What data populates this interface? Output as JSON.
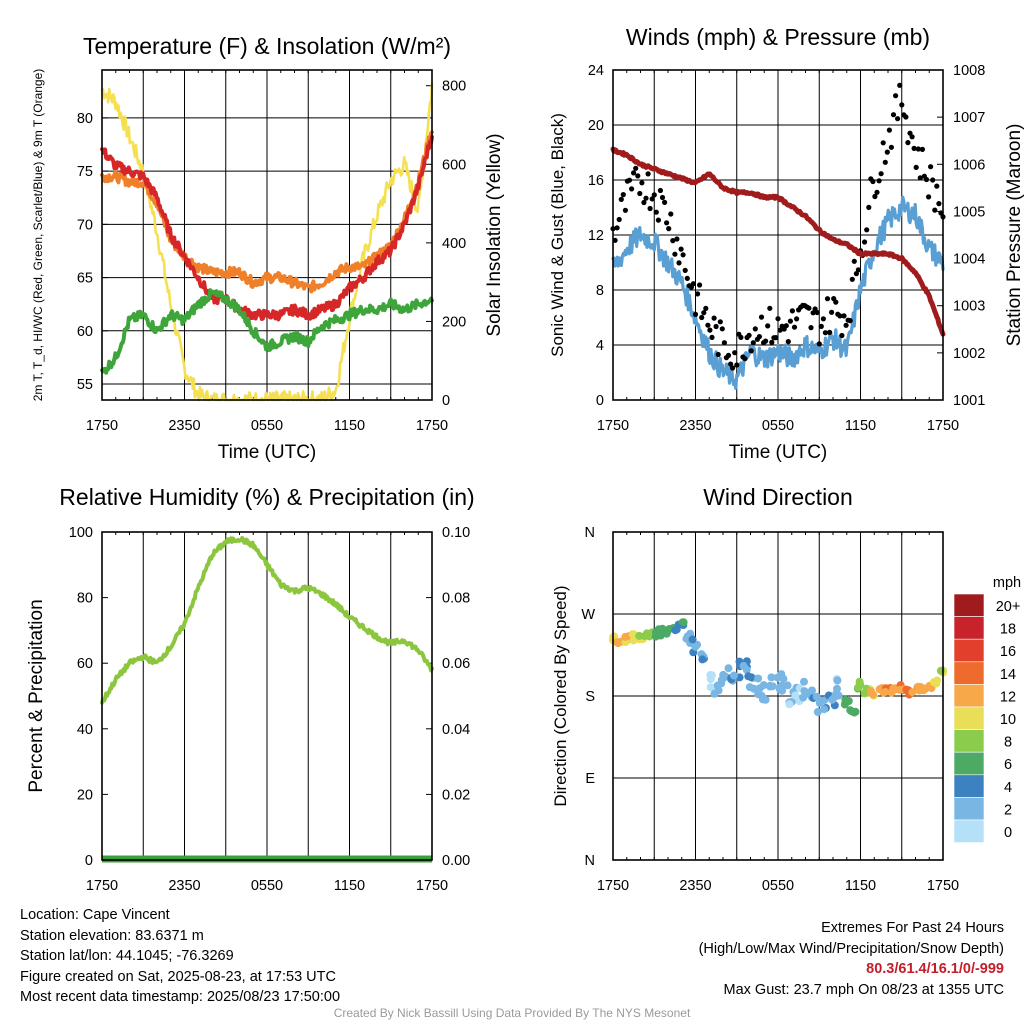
{
  "chart_data": [
    {
      "type": "line",
      "title": "Temperature (F) & Insolation (W/m²)",
      "xlabel": "Time (UTC)",
      "ylabel": "2m T, T_d, HI/WC (Red, Green, Scarlet/Blue) & 9m T (Orange)",
      "ylabel2": "Solar Insolation (Yellow)",
      "x_ticks": [
        "1750",
        "2350",
        "0550",
        "1150",
        "1750"
      ],
      "ylim": [
        53.5,
        84.5
      ],
      "y_ticks": [
        55,
        60,
        65,
        70,
        75,
        80
      ],
      "ylim2": [
        0,
        840
      ],
      "y2_ticks": [
        0,
        200,
        400,
        600,
        800
      ],
      "x_hours": [
        0,
        1,
        2,
        3,
        4,
        5,
        6,
        7,
        8,
        9,
        10,
        11,
        12,
        13,
        14,
        15,
        16,
        17,
        18,
        19,
        20,
        21,
        22,
        23,
        24
      ],
      "series": [
        {
          "name": "2m T",
          "color": "#d62728",
          "axis": "left",
          "values": [
            77,
            75.5,
            75,
            74.5,
            72.5,
            69,
            67,
            65,
            63,
            63,
            62,
            61.5,
            61.5,
            61.5,
            62,
            61.5,
            62,
            62.5,
            64,
            65,
            66.5,
            67.5,
            70,
            73.5,
            78.5
          ]
        },
        {
          "name": "9m T",
          "color": "#f07f2a",
          "axis": "left",
          "values": [
            74.5,
            74.5,
            74,
            74,
            72,
            68.5,
            67,
            66,
            65.5,
            65.5,
            65.5,
            64.5,
            65,
            65,
            64.5,
            64,
            64.5,
            65.5,
            66,
            66,
            67,
            68,
            70.5,
            74,
            79
          ]
        },
        {
          "name": "T_d",
          "color": "#3da53a",
          "axis": "left",
          "values": [
            56,
            57.5,
            61,
            61.5,
            60,
            61.5,
            61,
            62.5,
            63.5,
            63,
            62,
            60,
            58.5,
            59,
            59.5,
            59,
            60.5,
            61,
            61.5,
            62,
            62,
            62.5,
            62,
            62.5,
            63
          ]
        },
        {
          "name": "Solar Insolation",
          "color": "#f5e052",
          "axis": "right",
          "values": [
            790,
            760,
            670,
            580,
            430,
            240,
            80,
            12,
            0,
            0,
            0,
            0,
            0,
            0,
            0,
            0,
            2,
            25,
            210,
            360,
            470,
            560,
            600,
            480,
            800
          ]
        }
      ]
    },
    {
      "type": "line",
      "title": "Winds (mph) & Pressure (mb)",
      "xlabel": "Time (UTC)",
      "ylabel": "Sonic Wind & Gust (Blue, Black)",
      "ylabel2": "Station Pressure (Maroon)",
      "x_ticks": [
        "1750",
        "2350",
        "0550",
        "1150",
        "1750"
      ],
      "ylim": [
        0,
        24
      ],
      "y_ticks": [
        0,
        4,
        8,
        12,
        16,
        20,
        24
      ],
      "ylim2": [
        1001,
        1008
      ],
      "y2_ticks": [
        1001,
        1002,
        1003,
        1004,
        1005,
        1006,
        1007,
        1008
      ],
      "x_hours": [
        0,
        1,
        2,
        3,
        4,
        5,
        6,
        7,
        8,
        9,
        10,
        11,
        12,
        13,
        14,
        15,
        16,
        17,
        18,
        19,
        20,
        21,
        22,
        23,
        24
      ],
      "series": [
        {
          "name": "Sonic Wind",
          "color": "#5a9fd4",
          "axis": "left",
          "values": [
            9.5,
            11,
            12,
            11.5,
            10,
            8.5,
            6,
            3.5,
            2,
            1.5,
            3.5,
            3,
            3.5,
            3,
            4,
            3.5,
            4.5,
            3.5,
            8,
            11,
            13,
            14,
            13.5,
            11,
            10
          ]
        },
        {
          "name": "Gust",
          "color": "#000000",
          "axis": "left",
          "values": [
            12,
            14.5,
            16,
            15,
            13.5,
            10.5,
            7.5,
            5.5,
            4,
            3.5,
            5,
            5.5,
            5,
            5.5,
            6,
            5.5,
            6.5,
            6,
            11,
            16,
            19,
            22,
            18,
            16,
            14
          ]
        },
        {
          "name": "Station Pressure",
          "color": "#a01c1c",
          "axis": "right",
          "values": [
            1006.3,
            1006.2,
            1006,
            1005.9,
            1005.8,
            1005.7,
            1005.6,
            1005.8,
            1005.5,
            1005.4,
            1005.4,
            1005.3,
            1005.3,
            1005.1,
            1004.9,
            1004.6,
            1004.4,
            1004.3,
            1004.1,
            1004.1,
            1004.1,
            1004,
            1003.7,
            1003.2,
            1002.4
          ]
        }
      ]
    },
    {
      "type": "line",
      "title": "Relative Humidity (%) & Precipitation (in)",
      "xlabel": "",
      "ylabel": "Percent & Precipitation",
      "x_ticks": [
        "1750",
        "2350",
        "0550",
        "1150",
        "1750"
      ],
      "ylim": [
        0,
        100
      ],
      "y_ticks": [
        0,
        20,
        40,
        60,
        80,
        100
      ],
      "ylim2": [
        0,
        0.1
      ],
      "y2_ticks": [
        "0.00",
        "0.02",
        "0.04",
        "0.06",
        "0.08",
        "0.10"
      ],
      "x_hours": [
        0,
        1,
        2,
        3,
        4,
        5,
        6,
        7,
        8,
        9,
        10,
        11,
        12,
        13,
        14,
        15,
        16,
        17,
        18,
        19,
        20,
        21,
        22,
        23,
        24
      ],
      "series": [
        {
          "name": "Relative Humidity",
          "color": "#8cc63f",
          "axis": "left",
          "values": [
            48,
            55,
            60,
            62,
            60,
            65,
            72,
            83,
            93,
            97,
            98,
            96,
            90,
            84,
            82,
            83,
            81,
            78,
            74,
            71,
            68,
            66,
            67,
            64,
            58
          ]
        },
        {
          "name": "Precipitation",
          "color": "#3aa13a",
          "axis": "right",
          "values": [
            0,
            0,
            0,
            0,
            0,
            0,
            0,
            0,
            0,
            0,
            0,
            0,
            0,
            0,
            0,
            0,
            0,
            0,
            0,
            0,
            0,
            0,
            0,
            0,
            0
          ]
        }
      ]
    },
    {
      "type": "scatter",
      "title": "Wind Direction",
      "ylabel": "Direction (Colored By Speed)",
      "x_ticks": [
        "1750",
        "2350",
        "0550",
        "1150",
        "1750"
      ],
      "y_ticks": [
        "N",
        "E",
        "S",
        "W",
        "N"
      ],
      "ylim_deg": [
        0,
        360
      ],
      "x_hours": [
        0,
        0.5,
        1,
        1.5,
        2,
        2.5,
        3,
        3.5,
        4,
        4.5,
        5,
        5.5,
        6,
        6.5,
        7,
        7.5,
        8,
        8.5,
        9,
        9.5,
        10,
        10.5,
        11,
        11.5,
        12,
        12.5,
        13,
        13.5,
        14,
        14.5,
        15,
        15.5,
        16,
        16.5,
        17,
        17.5,
        18,
        18.5,
        19,
        19.5,
        20,
        20.5,
        21,
        21.5,
        22,
        22.5,
        23,
        23.5,
        24
      ],
      "direction_deg": [
        244,
        242,
        243,
        245,
        244,
        247,
        248,
        250,
        252,
        255,
        258,
        245,
        235,
        222,
        200,
        190,
        198,
        205,
        210,
        208,
        200,
        192,
        185,
        190,
        195,
        190,
        180,
        182,
        185,
        178,
        172,
        175,
        180,
        188,
        172,
        165,
        192,
        185,
        184,
        186,
        185,
        187,
        190,
        185,
        188,
        189,
        191,
        195,
        205
      ],
      "speed_mph": [
        11,
        11.5,
        12,
        11,
        10.5,
        9,
        8.5,
        7.5,
        7,
        6.5,
        6,
        3,
        3.5,
        3.5,
        1.5,
        2.5,
        3,
        3.5,
        4,
        3.5,
        3.5,
        4,
        3,
        3.5,
        3.5,
        3,
        2.5,
        2,
        3,
        3.5,
        4,
        4,
        3.5,
        2.5,
        6.5,
        7,
        8.5,
        10,
        12,
        13,
        13.5,
        13,
        13.5,
        15,
        14.5,
        13,
        12,
        11,
        10
      ],
      "colorbar": {
        "title": "mph",
        "labels": [
          "20+",
          "18",
          "16",
          "14",
          "12",
          "10",
          "8",
          "6",
          "4",
          "2",
          "0"
        ],
        "colors": [
          "#a01c1c",
          "#c8222a",
          "#e23f2c",
          "#ef6b2d",
          "#f7a848",
          "#e8de58",
          "#8ccc4c",
          "#4caa64",
          "#3c82c0",
          "#7ab6e4",
          "#b4e0f8"
        ]
      }
    }
  ],
  "info": {
    "location": "Location: Cape Vincent",
    "elevation": "Station elevation: 83.6371 m",
    "latlon": "Station lat/lon: 44.1045; -76.3269",
    "created": "Figure created on Sat, 2025-08-23, at 17:53 UTC",
    "recent": "Most recent data timestamp: 2025/08/23 17:50:00"
  },
  "extremes": {
    "heading": "Extremes For Past 24 Hours",
    "subheading": "(High/Low/Max Wind/Precipitation/Snow Depth)",
    "values": "80.3/61.4/16.1/0/-999",
    "gust": "Max Gust: 23.7 mph On 08/23 at 1355 UTC"
  },
  "credit": "Created By Nick Bassill Using Data Provided By The NYS Mesonet"
}
